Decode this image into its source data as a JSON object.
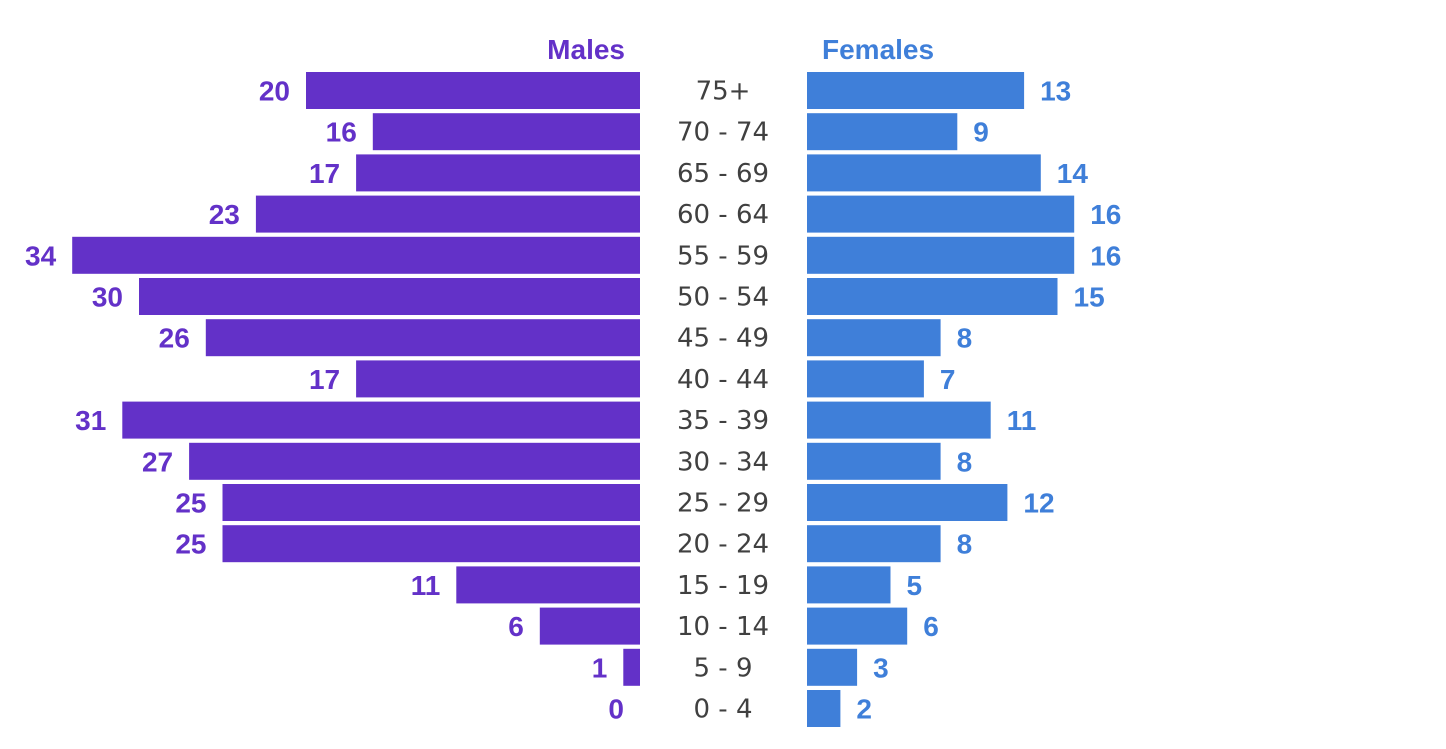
{
  "chart_data": {
    "type": "bar",
    "subtype": "population-pyramid",
    "title": "",
    "legend_placement": "top",
    "grid": false,
    "categories": [
      "75+",
      "70 - 74",
      "65 - 69",
      "60 - 64",
      "55 - 59",
      "50 - 54",
      "45 - 49",
      "40 - 44",
      "35 - 39",
      "30 - 34",
      "25 - 29",
      "20 - 24",
      "15 - 19",
      "10 - 14",
      "5 - 9",
      "0 - 4"
    ],
    "series": [
      {
        "name": "Males",
        "color": "#6331c8",
        "side": "left",
        "values": [
          20,
          16,
          17,
          23,
          34,
          30,
          26,
          17,
          31,
          27,
          25,
          25,
          11,
          6,
          1,
          0
        ]
      },
      {
        "name": "Females",
        "color": "#3f7fd9",
        "side": "right",
        "values": [
          13,
          9,
          14,
          16,
          16,
          15,
          8,
          7,
          11,
          8,
          12,
          8,
          5,
          6,
          3,
          2
        ]
      }
    ]
  }
}
